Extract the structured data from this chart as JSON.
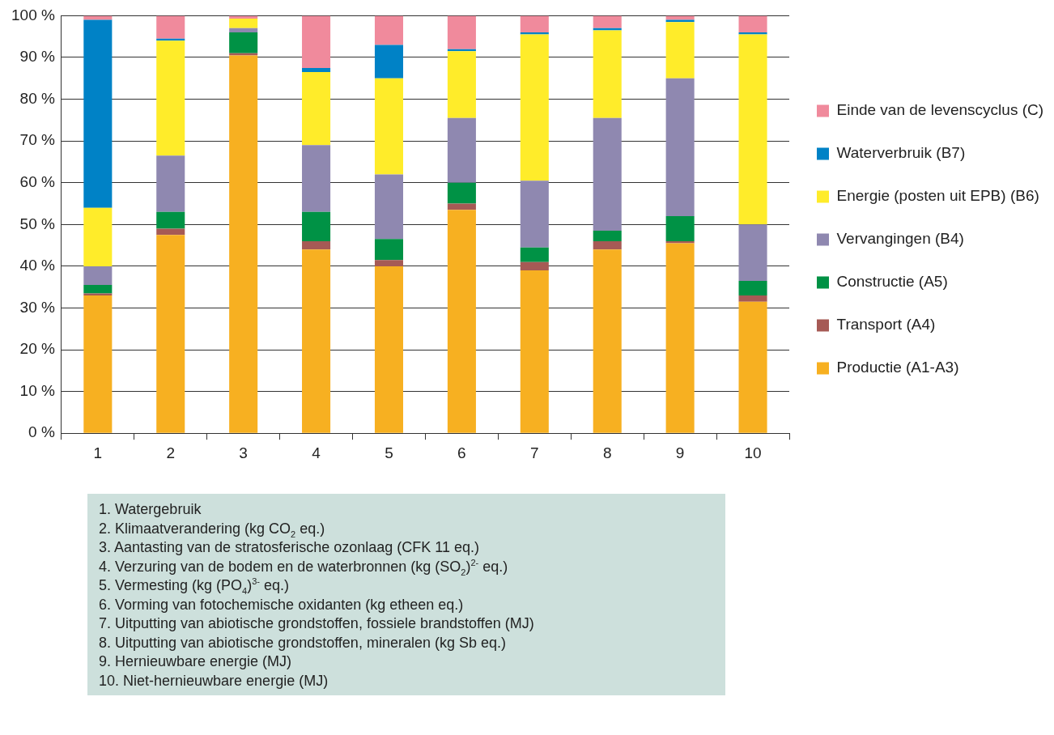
{
  "chart_data": {
    "type": "bar",
    "stacked": true,
    "categories": [
      "1",
      "2",
      "3",
      "4",
      "5",
      "6",
      "7",
      "8",
      "9",
      "10"
    ],
    "series": [
      {
        "name": "Productie (A1-A3)",
        "color": "#f7b021",
        "values": [
          33,
          47.5,
          90.5,
          44,
          40,
          53.5,
          39,
          44,
          45.5,
          31.5
        ]
      },
      {
        "name": "Transport (A4)",
        "color": "#a65a55",
        "values": [
          0.5,
          1.5,
          0.5,
          2,
          1.5,
          1.5,
          2,
          2,
          0.5,
          1.5
        ]
      },
      {
        "name": "Constructie (A5)",
        "color": "#009245",
        "values": [
          2,
          4,
          5,
          7,
          5,
          5,
          3.5,
          2.5,
          6,
          3.5
        ]
      },
      {
        "name": "Vervangingen (B4)",
        "color": "#8f88b0",
        "values": [
          4.5,
          13.5,
          1,
          16,
          15.5,
          15.5,
          16,
          27,
          33,
          13.5
        ]
      },
      {
        "name": "Energie (posten uit EPB) (B6)",
        "color": "#ffec2a",
        "values": [
          14,
          27.5,
          2.3,
          17.5,
          23,
          16,
          35,
          21,
          13.5,
          45.5
        ]
      },
      {
        "name": "Waterverbruik (B7)",
        "color": "#0082c6",
        "values": [
          45,
          0.5,
          0,
          1,
          8,
          0.5,
          0.5,
          0.5,
          0.5,
          0.5
        ]
      },
      {
        "name": "Einde van de levenscyclus (C)",
        "color": "#f08a9c",
        "values": [
          1,
          5.5,
          0.7,
          12.5,
          7,
          8,
          4,
          3,
          1,
          4
        ]
      }
    ],
    "ylim": [
      0,
      100
    ],
    "yticks": [
      {
        "value": 0,
        "label": "0 %"
      },
      {
        "value": 10,
        "label": "10 %"
      },
      {
        "value": 20,
        "label": "20 %"
      },
      {
        "value": 30,
        "label": "30 %"
      },
      {
        "value": 40,
        "label": "40 %"
      },
      {
        "value": 50,
        "label": "50 %"
      },
      {
        "value": 60,
        "label": "60 %"
      },
      {
        "value": 70,
        "label": "70 %"
      },
      {
        "value": 80,
        "label": "80 %"
      },
      {
        "value": 90,
        "label": "90 %"
      },
      {
        "value": 100,
        "label": "100 %"
      }
    ],
    "grid": "y",
    "legend": "right",
    "annotations": [
      "1. Watergebruik",
      "2. Klimaatverandering (kg CO$_{2}$ eq.)",
      "3. Aantasting van de stratosferische ozonlaag (CFK 11 eq.)",
      "4. Verzuring van de bodem en de waterbronnen (kg (SO$_{2}$)$^{2-}$ eq.)",
      "5. Vermesting (kg (PO$_{4}$)$^{3-}$ eq.)",
      "6. Vorming van fotochemische oxidanten (kg etheen eq.)",
      "7. Uitputting van abiotische grondstoffen, fossiele brandstoffen (MJ)",
      "8. Uitputting van abiotische grondstoffen, mineralen (kg Sb eq.)",
      "9. Hernieuwbare energie (MJ)",
      "10. Niet-hernieuwbare energie (MJ)"
    ]
  }
}
